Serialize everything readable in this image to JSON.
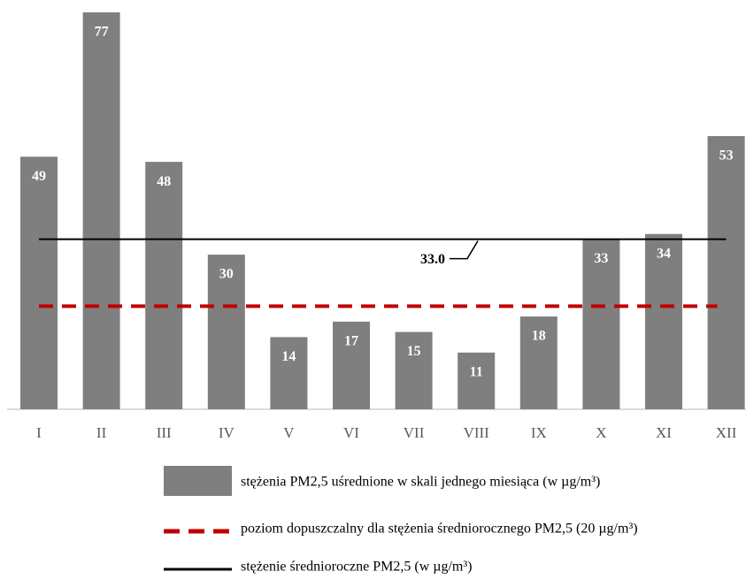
{
  "chart_data": {
    "type": "bar",
    "categories": [
      "I",
      "II",
      "III",
      "IV",
      "V",
      "VI",
      "VII",
      "VIII",
      "IX",
      "X",
      "XI",
      "XII"
    ],
    "series": [
      {
        "name": "stężenia PM2,5 uśrednione w skali jednego miesiąca (w µg/m³)",
        "color": "#7f7f7f",
        "values": [
          49,
          77,
          48,
          30,
          14,
          17,
          15,
          11,
          18,
          33,
          34,
          53
        ]
      }
    ],
    "lines": [
      {
        "name": "poziom dopuszczalny dla stężenia średniorocznego PM2,5 (20 µg/m³)",
        "value": 20,
        "color": "#c00000",
        "style": "dashed"
      },
      {
        "name": "stężenie średnioroczne PM2,5 (w µg/m³)",
        "value": 33.0,
        "value_label": "33.0",
        "color": "#000000",
        "style": "solid"
      }
    ]
  }
}
